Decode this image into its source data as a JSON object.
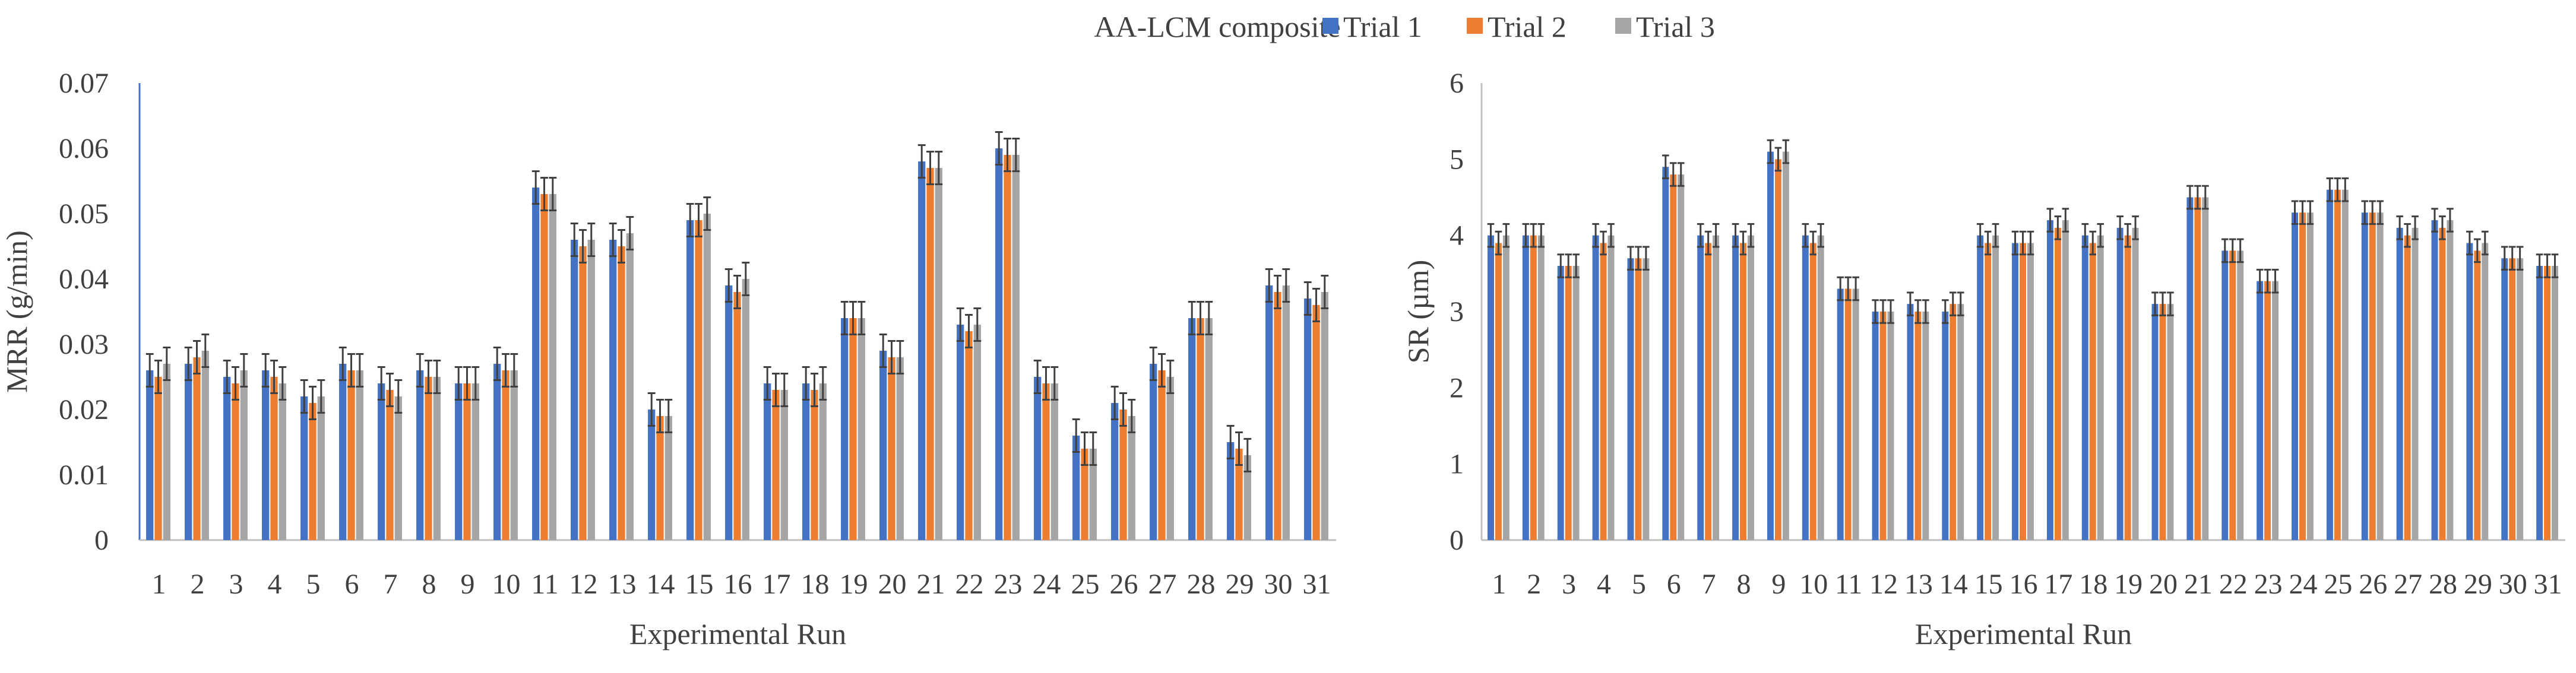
{
  "legend": {
    "title": "AA-LCM composite",
    "items": [
      {
        "name": "Trial 1",
        "color": "#4472C4"
      },
      {
        "name": "Trial 2",
        "color": "#ED7D31"
      },
      {
        "name": "Trial 3",
        "color": "#A5A5A5"
      }
    ]
  },
  "colors": {
    "axis": "#4472C4",
    "grid_axis": "#bfbfbf",
    "error_bar": "#404040",
    "text": "#404040"
  },
  "chart_data": [
    {
      "type": "bar",
      "title": "AA-LCM composite",
      "xlabel": "Experimental Run",
      "ylabel": "MRR (g/min)",
      "ylim": [
        0,
        0.07
      ],
      "yticks": [
        "0",
        "0.01",
        "0.02",
        "0.03",
        "0.04",
        "0.05",
        "0.06",
        "0.07"
      ],
      "ytick_values": [
        0,
        0.01,
        0.02,
        0.03,
        0.04,
        0.05,
        0.06,
        0.07
      ],
      "categories": [
        "1",
        "2",
        "3",
        "4",
        "5",
        "6",
        "7",
        "8",
        "9",
        "10",
        "11",
        "12",
        "13",
        "14",
        "15",
        "16",
        "17",
        "18",
        "19",
        "20",
        "21",
        "22",
        "23",
        "24",
        "25",
        "26",
        "27",
        "28",
        "29",
        "30",
        "31"
      ],
      "series": [
        {
          "name": "Trial 1",
          "values": [
            0.026,
            0.027,
            0.025,
            0.026,
            0.022,
            0.027,
            0.024,
            0.026,
            0.024,
            0.027,
            0.054,
            0.046,
            0.046,
            0.02,
            0.049,
            0.039,
            0.024,
            0.024,
            0.034,
            0.029,
            0.058,
            0.033,
            0.06,
            0.025,
            0.016,
            0.021,
            0.027,
            0.034,
            0.015,
            0.039,
            0.037
          ]
        },
        {
          "name": "Trial 2",
          "values": [
            0.025,
            0.028,
            0.024,
            0.025,
            0.021,
            0.026,
            0.023,
            0.025,
            0.024,
            0.026,
            0.053,
            0.045,
            0.045,
            0.019,
            0.049,
            0.038,
            0.023,
            0.023,
            0.034,
            0.028,
            0.057,
            0.032,
            0.059,
            0.024,
            0.014,
            0.02,
            0.026,
            0.034,
            0.014,
            0.038,
            0.036
          ]
        },
        {
          "name": "Trial 3",
          "values": [
            0.027,
            0.029,
            0.026,
            0.024,
            0.022,
            0.026,
            0.022,
            0.025,
            0.024,
            0.026,
            0.053,
            0.046,
            0.047,
            0.019,
            0.05,
            0.04,
            0.023,
            0.024,
            0.034,
            0.028,
            0.057,
            0.033,
            0.059,
            0.024,
            0.014,
            0.019,
            0.025,
            0.034,
            0.013,
            0.039,
            0.038
          ]
        }
      ],
      "error": 0.0025
    },
    {
      "type": "bar",
      "title": "AA-LCM composite",
      "xlabel": "Experimental Run",
      "ylabel": "SR (µm)",
      "ylim": [
        0,
        6
      ],
      "yticks": [
        "0",
        "1",
        "2",
        "3",
        "4",
        "5",
        "6"
      ],
      "ytick_values": [
        0,
        1,
        2,
        3,
        4,
        5,
        6
      ],
      "categories": [
        "1",
        "2",
        "3",
        "4",
        "5",
        "6",
        "7",
        "8",
        "9",
        "10",
        "11",
        "12",
        "13",
        "14",
        "15",
        "16",
        "17",
        "18",
        "19",
        "20",
        "21",
        "22",
        "23",
        "24",
        "25",
        "26",
        "27",
        "28",
        "29",
        "30",
        "31"
      ],
      "series": [
        {
          "name": "Trial 1",
          "values": [
            4.0,
            4.0,
            3.6,
            4.0,
            3.7,
            4.9,
            4.0,
            4.0,
            5.1,
            4.0,
            3.3,
            3.0,
            3.1,
            3.0,
            4.0,
            3.9,
            4.2,
            4.0,
            4.1,
            3.1,
            4.5,
            3.8,
            3.4,
            4.3,
            4.6,
            4.3,
            4.1,
            4.2,
            3.9,
            3.7,
            3.6
          ]
        },
        {
          "name": "Trial 2",
          "values": [
            3.9,
            4.0,
            3.6,
            3.9,
            3.7,
            4.8,
            3.9,
            3.9,
            5.0,
            3.9,
            3.3,
            3.0,
            3.0,
            3.1,
            3.9,
            3.9,
            4.1,
            3.9,
            4.0,
            3.1,
            4.5,
            3.8,
            3.4,
            4.3,
            4.6,
            4.3,
            4.0,
            4.1,
            3.8,
            3.7,
            3.6
          ]
        },
        {
          "name": "Trial 3",
          "values": [
            4.0,
            4.0,
            3.6,
            4.0,
            3.7,
            4.8,
            4.0,
            4.0,
            5.1,
            4.0,
            3.3,
            3.0,
            3.0,
            3.1,
            4.0,
            3.9,
            4.2,
            4.0,
            4.1,
            3.1,
            4.5,
            3.8,
            3.4,
            4.3,
            4.6,
            4.3,
            4.1,
            4.2,
            3.9,
            3.7,
            3.6
          ]
        }
      ],
      "error": 0.15
    }
  ]
}
